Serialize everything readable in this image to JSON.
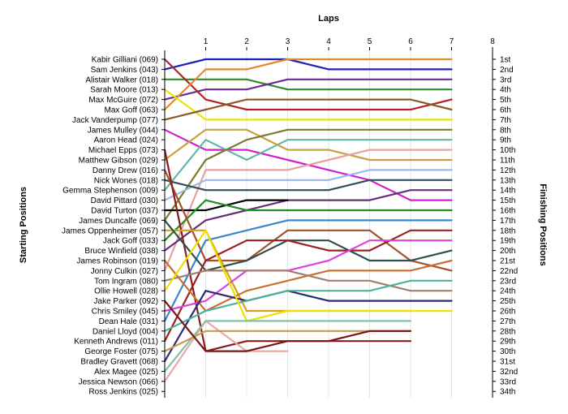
{
  "chart_data": {
    "type": "line",
    "title": "",
    "xlabel": "Laps",
    "ylabel_left": "Starting Positions",
    "ylabel_right": "Finishing Positions",
    "x_ticks": [
      1,
      2,
      3,
      4,
      5,
      6,
      7,
      8
    ],
    "start_labels": [
      "Kabir Gilliani (069)",
      "Sam Jenkins (043)",
      "Alistair Walker (018)",
      "Sarah Moore (013)",
      "Max McGuire (072)",
      "Max Goff (063)",
      "Jack Vanderpump (077)",
      "James Mulley (044)",
      "Aaron Head (024)",
      "Michael Epps (073)",
      "Matthew Gibson (029)",
      "Danny Drew (016)",
      "Nick Wones (018)",
      "Gemma Stephenson (009)",
      "David Pittard (030)",
      "David Turton (037)",
      "James Duncalfe (069)",
      "James Oppenheimer (057)",
      "Jack Goff (033)",
      "Bruce Winfield (038)",
      "James Robinson (019)",
      "Jonny Culkin (027)",
      "Tom Ingram (080)",
      "Ollie Howell (028)",
      "Jake Parker (092)",
      "Chris Smiley (045)",
      "Dean Hale (031)",
      "Daniel Lloyd (004)",
      "Kenneth Andrews (011)",
      "George Foster (075)",
      "Bradley Gravett (068)",
      "Alex Magee (025)",
      "Jessica Newson (066)",
      "Ross Jenkins (025)"
    ],
    "finish_labels": [
      "1st",
      "2nd",
      "3rd",
      "4th",
      "5th",
      "6th",
      "7th",
      "8th",
      "9th",
      "10th",
      "11th",
      "12th",
      "13th",
      "14th",
      "15th",
      "16th",
      "17th",
      "18th",
      "19th",
      "20th",
      "21st",
      "22nd",
      "23rd",
      "24th",
      "25th",
      "26th",
      "27th",
      "28th",
      "29th",
      "30th",
      "31st",
      "32nd",
      "33rd",
      "34th"
    ],
    "series": [
      {
        "color": "#1f1fb8",
        "positions": [
          2,
          1,
          1,
          1,
          2,
          2,
          2,
          2
        ]
      },
      {
        "color": "#2e8b2e",
        "positions": [
          3,
          3,
          3,
          4,
          4,
          4,
          4,
          4
        ]
      },
      {
        "color": "#6a2c91",
        "positions": [
          5,
          4,
          4,
          3,
          3,
          3,
          3,
          3
        ]
      },
      {
        "color": "#b22222",
        "positions": [
          1,
          5,
          6,
          6,
          6,
          6,
          6,
          5
        ]
      },
      {
        "color": "#e08a2c",
        "positions": [
          6,
          2,
          2,
          1,
          1,
          1,
          1,
          1
        ]
      },
      {
        "color": "#e6e600",
        "positions": [
          4,
          7,
          7,
          7,
          7,
          7,
          7,
          7
        ]
      },
      {
        "color": "#8b5a2b",
        "positions": [
          7,
          6,
          5,
          5,
          5,
          5,
          5,
          6
        ]
      },
      {
        "color": "#d020d0",
        "positions": [
          8,
          10,
          10,
          11,
          12,
          13,
          15,
          15
        ]
      },
      {
        "color": "#5fb8a8",
        "positions": [
          14,
          9,
          11,
          9,
          9,
          9,
          9,
          9
        ]
      },
      {
        "color": "#c8a040",
        "positions": [
          11,
          8,
          8,
          10,
          10,
          11,
          11,
          11
        ]
      },
      {
        "color": "#e8a0a0",
        "positions": [
          22,
          12,
          12,
          12,
          11,
          10,
          10,
          10
        ]
      },
      {
        "color": "#7a7a2c",
        "positions": [
          17,
          11,
          9,
          8,
          8,
          8,
          8,
          8
        ]
      },
      {
        "color": "#9ab8e8",
        "positions": [
          15,
          13,
          13,
          13,
          13,
          12,
          12,
          12
        ]
      },
      {
        "color": "#2f4f5f",
        "positions": [
          13,
          14,
          14,
          14,
          14,
          13,
          13,
          13
        ]
      },
      {
        "color": "#6a2c7a",
        "positions": [
          20,
          17,
          16,
          15,
          15,
          15,
          14,
          14
        ]
      },
      {
        "color": "#000000",
        "positions": [
          16,
          16,
          15,
          15
        ]
      },
      {
        "color": "#228b22",
        "positions": [
          19,
          15,
          16,
          16,
          16,
          16,
          16,
          16
        ]
      },
      {
        "color": "#3a86c8",
        "positions": [
          27,
          19,
          18,
          17,
          17,
          17,
          17,
          17
        ]
      },
      {
        "color": "#a0522d",
        "positions": [
          12,
          21,
          21,
          18,
          18,
          18,
          21,
          22
        ]
      },
      {
        "color": "#8b1a1a",
        "positions": [
          10,
          30,
          29,
          29,
          29,
          29,
          29
        ]
      },
      {
        "color": "#d4a020",
        "positions": [
          18,
          18,
          26,
          26,
          26,
          26,
          26
        ]
      },
      {
        "color": "#2f4f4f",
        "positions": [
          17,
          22,
          21,
          19,
          19,
          21,
          21,
          20
        ]
      },
      {
        "color": "#9b2020",
        "positions": [
          29,
          21,
          19,
          19,
          20,
          20,
          18,
          18
        ]
      },
      {
        "color": "#e040e0",
        "positions": [
          26,
          25,
          22,
          22,
          21,
          19,
          19,
          19
        ]
      },
      {
        "color": "#c87030",
        "positions": [
          21,
          26,
          24,
          23,
          22,
          22,
          22,
          21
        ]
      },
      {
        "color": "#a08070",
        "positions": [
          23,
          22,
          22,
          22,
          23,
          23,
          24,
          24
        ]
      },
      {
        "color": "#2a2a70",
        "positions": [
          31,
          24,
          25,
          24,
          25,
          25,
          25,
          25
        ]
      },
      {
        "color": "#4fb0a0",
        "positions": [
          28,
          26,
          25,
          24,
          24,
          24,
          23,
          23
        ]
      },
      {
        "color": "#f0e000",
        "positions": [
          24,
          18,
          27,
          26,
          26,
          26,
          26,
          26
        ]
      },
      {
        "color": "#e8a8a8",
        "positions": [
          33,
          27,
          30,
          30
        ]
      },
      {
        "color": "#80c0a8",
        "positions": [
          32,
          27,
          27,
          27,
          27,
          27,
          27
        ]
      },
      {
        "color": "#c89a50",
        "positions": [
          30,
          28,
          28,
          28,
          28,
          28,
          28
        ]
      },
      {
        "color": "#7a1515",
        "positions": [
          25,
          30,
          30,
          29,
          29,
          28,
          28
        ]
      }
    ]
  }
}
